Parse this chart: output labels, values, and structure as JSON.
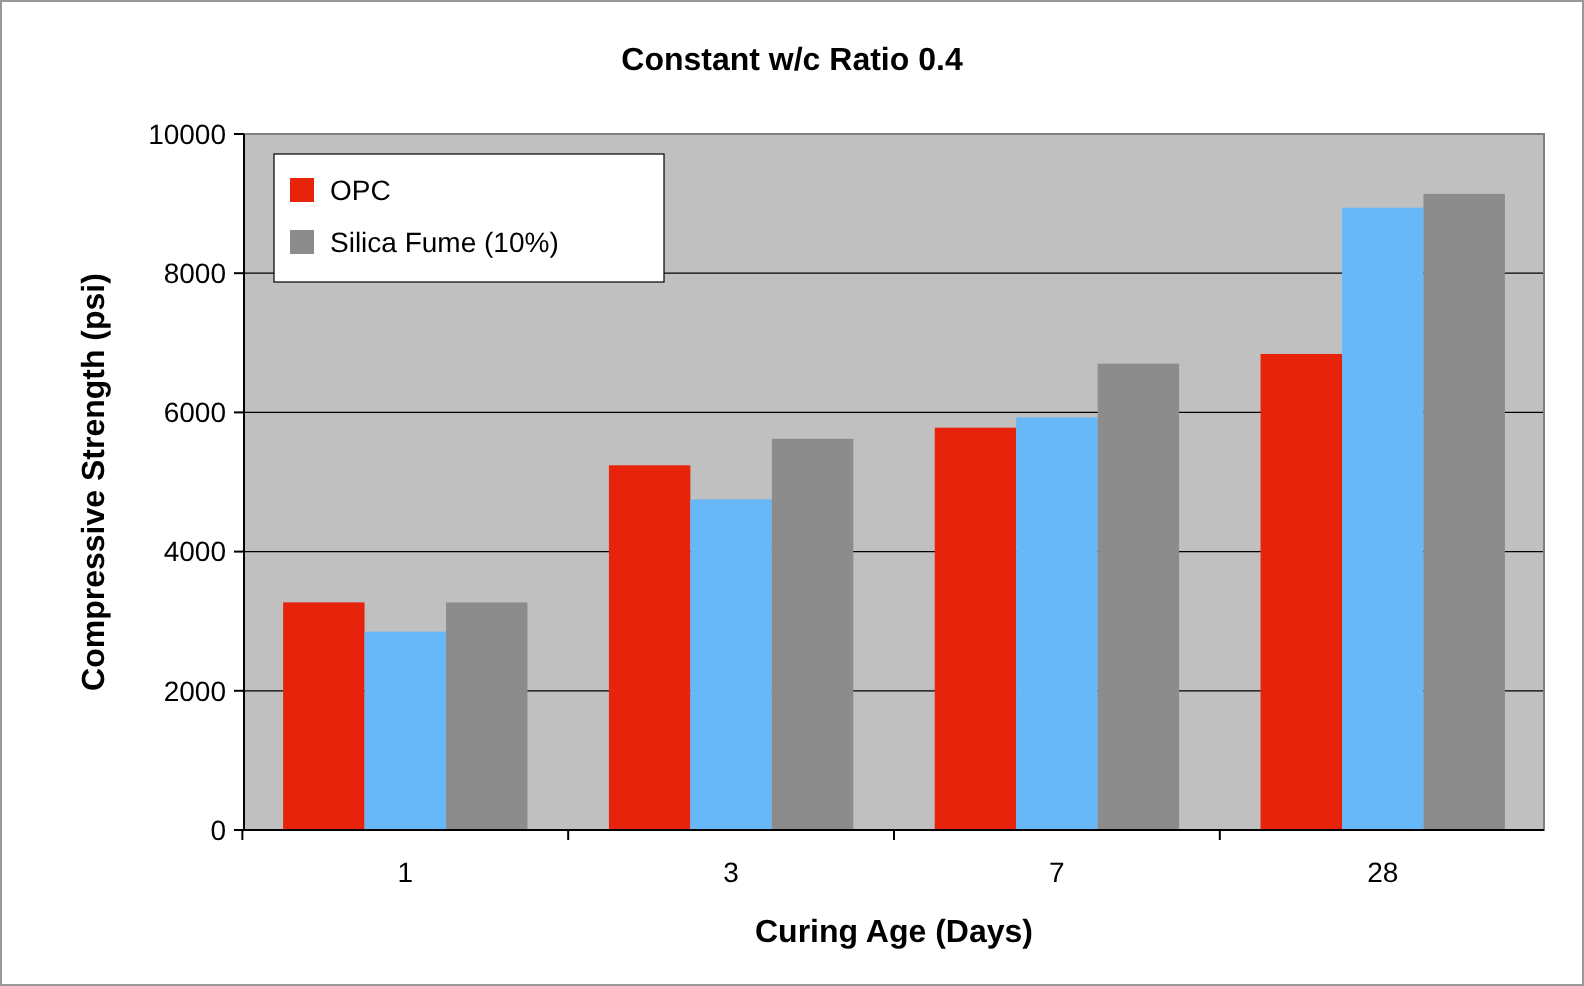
{
  "chart_data": {
    "type": "bar",
    "title": "Constant w/c Ratio 0.4",
    "xlabel": "Curing Age (Days)",
    "ylabel": "Compressive Strength (psi)",
    "categories": [
      "1",
      "3",
      "7",
      "28"
    ],
    "series": [
      {
        "name": "OPC",
        "color": "#e8230b",
        "values": [
          3270,
          5240,
          5780,
          6840
        ]
      },
      {
        "color": "#66b8f8",
        "values": [
          2850,
          4750,
          5930,
          8940
        ]
      },
      {
        "name": "Silica Fume (10%)",
        "color": "#8c8c8c",
        "values": [
          3270,
          5620,
          6700,
          9140
        ]
      }
    ],
    "ylim": [
      0,
      10000
    ],
    "yticks": [
      0,
      2000,
      4000,
      6000,
      8000,
      10000
    ],
    "grid": "y",
    "legend": "top left"
  }
}
